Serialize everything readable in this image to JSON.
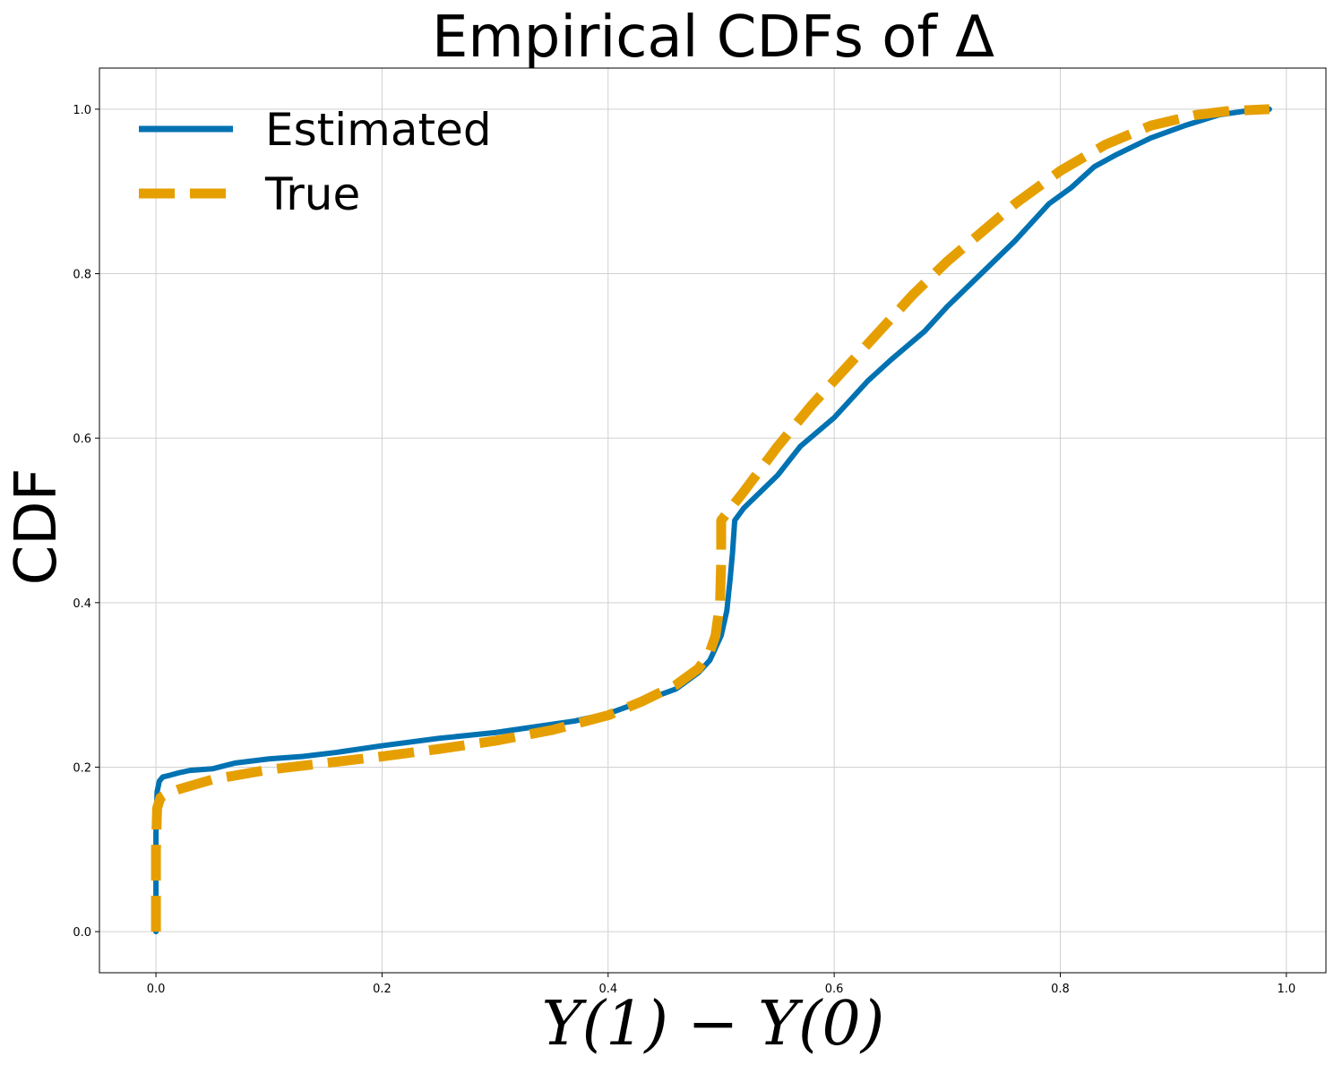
{
  "chart_data": {
    "type": "line",
    "title": "Empirical CDFs of Δ",
    "xlabel": "Y(1) − Y(0)",
    "ylabel": "CDF",
    "xlim": [
      -0.05,
      1.035
    ],
    "ylim": [
      -0.05,
      1.05
    ],
    "xticks": [
      0.0,
      0.2,
      0.4,
      0.6,
      0.8,
      1.0
    ],
    "xtick_labels": [
      "0.0",
      "0.2",
      "0.4",
      "0.6",
      "0.8",
      "1.0"
    ],
    "yticks": [
      0.0,
      0.2,
      0.4,
      0.6,
      0.8,
      1.0
    ],
    "ytick_labels": [
      "0.0",
      "0.2",
      "0.4",
      "0.6",
      "0.8",
      "1.0"
    ],
    "grid": true,
    "legend_position": "top-left",
    "series": [
      {
        "name": "Estimated",
        "style": "solid",
        "color": "#0072B2",
        "x": [
          0.0,
          0.0,
          0.001,
          0.003,
          0.006,
          0.012,
          0.02,
          0.03,
          0.05,
          0.07,
          0.1,
          0.13,
          0.16,
          0.2,
          0.25,
          0.3,
          0.33,
          0.37,
          0.4,
          0.43,
          0.46,
          0.48,
          0.49,
          0.5,
          0.505,
          0.508,
          0.51,
          0.512,
          0.52,
          0.535,
          0.55,
          0.57,
          0.6,
          0.63,
          0.65,
          0.68,
          0.7,
          0.73,
          0.76,
          0.79,
          0.81,
          0.83,
          0.85,
          0.88,
          0.91,
          0.94,
          0.97,
          0.985
        ],
        "y": [
          0.0,
          0.12,
          0.17,
          0.183,
          0.188,
          0.19,
          0.193,
          0.196,
          0.198,
          0.205,
          0.21,
          0.213,
          0.218,
          0.226,
          0.235,
          0.242,
          0.248,
          0.256,
          0.265,
          0.28,
          0.295,
          0.315,
          0.33,
          0.36,
          0.39,
          0.43,
          0.46,
          0.5,
          0.515,
          0.535,
          0.555,
          0.59,
          0.625,
          0.67,
          0.695,
          0.73,
          0.76,
          0.8,
          0.84,
          0.885,
          0.905,
          0.93,
          0.945,
          0.965,
          0.98,
          0.993,
          0.999,
          1.0
        ]
      },
      {
        "name": "True",
        "style": "dashed",
        "color": "#E69F00",
        "x": [
          0.0,
          0.0,
          0.001,
          0.004,
          0.01,
          0.02,
          0.05,
          0.1,
          0.15,
          0.2,
          0.25,
          0.3,
          0.35,
          0.4,
          0.43,
          0.46,
          0.48,
          0.49,
          0.495,
          0.499,
          0.5,
          0.5,
          0.52,
          0.55,
          0.58,
          0.61,
          0.64,
          0.67,
          0.7,
          0.73,
          0.76,
          0.8,
          0.84,
          0.88,
          0.92,
          0.95,
          0.985
        ],
        "y": [
          0.0,
          0.1,
          0.15,
          0.163,
          0.168,
          0.173,
          0.185,
          0.197,
          0.205,
          0.213,
          0.222,
          0.232,
          0.245,
          0.263,
          0.28,
          0.3,
          0.32,
          0.34,
          0.36,
          0.4,
          0.45,
          0.5,
          0.535,
          0.59,
          0.64,
          0.685,
          0.73,
          0.775,
          0.815,
          0.85,
          0.885,
          0.925,
          0.957,
          0.98,
          0.993,
          0.998,
          1.0
        ]
      }
    ]
  }
}
